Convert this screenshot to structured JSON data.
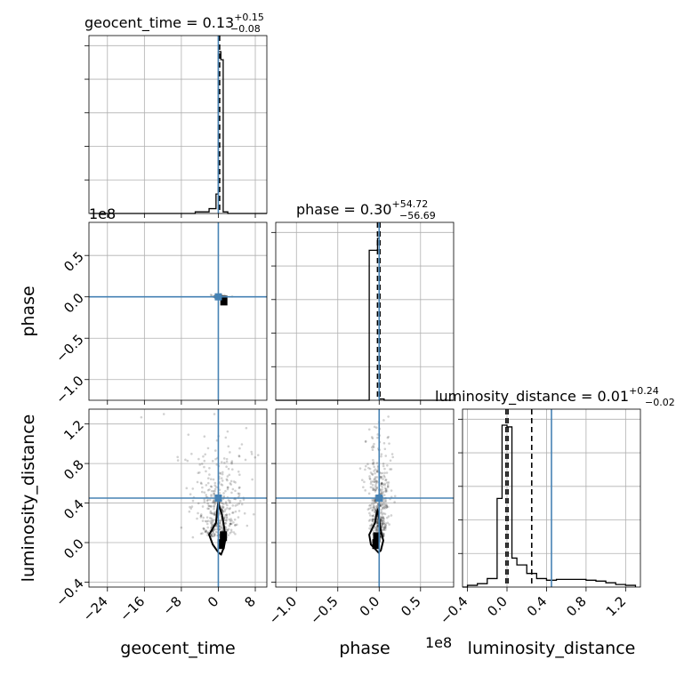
{
  "colors": {
    "truth": "#4682b4",
    "quantile": "#000000",
    "histogram": "#000000",
    "grid": "#b0b0b0",
    "scatter": "#000000"
  },
  "chart_data": {
    "type": "scatter",
    "kind": "corner-plot",
    "grid": true,
    "parameters": [
      "geocent_time",
      "phase",
      "luminosity_distance"
    ],
    "truths": {
      "geocent_time": 0.0,
      "phase": 0.0,
      "luminosity_distance": 0.45
    },
    "titles": {
      "geocent_time": {
        "name": "geocent_time",
        "median": "0.13",
        "plus": "+0.15",
        "minus": "−0.08"
      },
      "phase": {
        "name": "phase",
        "median": "0.30",
        "plus": "+54.72",
        "minus": "−56.69"
      },
      "luminosity_distance": {
        "name": "luminosity_distance",
        "median": "0.01",
        "plus": "+0.24",
        "minus": "−0.02"
      }
    },
    "axes": {
      "geocent_time": {
        "label": "geocent_time",
        "range": [
          -28,
          10.5
        ],
        "ticks": [
          -24,
          -16,
          -8,
          0,
          8
        ],
        "tick_labels": [
          "−24",
          "−16",
          "−8",
          "0",
          "8"
        ]
      },
      "phase": {
        "label": "phase",
        "range": [
          -1.25,
          0.9
        ],
        "ticks": [
          -1.0,
          -0.5,
          0.0,
          0.5
        ],
        "tick_labels": [
          "−1.0",
          "−0.5",
          "0.0",
          "0.5"
        ],
        "offset": "1e8"
      },
      "luminosity_distance": {
        "label": "luminosity_distance",
        "range": [
          -0.45,
          1.35
        ],
        "ticks": [
          -0.4,
          0.0,
          0.4,
          0.8,
          1.2
        ],
        "tick_labels": [
          "−0.4",
          "0.0",
          "0.4",
          "0.8",
          "1.2"
        ]
      }
    },
    "histograms": {
      "geocent_time": {
        "edges": [
          -27.75,
          -19.75,
          -9,
          -5,
          -2,
          -0.5,
          0.0,
          0.55,
          1.05,
          2.05,
          4.5,
          10.5
        ],
        "counts": [
          0,
          0,
          0,
          0.01,
          0.03,
          0.12,
          1.0,
          0.95,
          0.01,
          0,
          0
        ],
        "quantiles": [
          0.05,
          0.13,
          0.28
        ]
      },
      "phase": {
        "edges": [
          -1.25,
          -0.45,
          -0.12,
          -0.02,
          0.0,
          0.06,
          0.9
        ],
        "counts": [
          0,
          0,
          0.88,
          0.95,
          0.008,
          0
        ],
        "quantiles": [
          -0.02,
          0.0,
          0.01
        ]
      },
      "luminosity_distance": {
        "edges": [
          -0.45,
          -0.4,
          -0.3,
          -0.2,
          -0.1,
          -0.05,
          0.0,
          0.05,
          0.1,
          0.2,
          0.3,
          0.4,
          0.5,
          0.6,
          0.7,
          0.8,
          0.9,
          1.0,
          1.1,
          1.2,
          1.3
        ],
        "counts": [
          0.0,
          0.01,
          0.02,
          0.05,
          0.52,
          0.95,
          0.94,
          0.17,
          0.13,
          0.08,
          0.05,
          0.04,
          0.045,
          0.045,
          0.045,
          0.04,
          0.035,
          0.025,
          0.015,
          0.01
        ],
        "quantiles": [
          -0.01,
          0.01,
          0.25
        ]
      }
    },
    "contours": {
      "luminosity_distance_vs_geocent_time": {
        "x": [
          0.0,
          -1.2,
          -2.0,
          -0.5,
          -0.3,
          0.0,
          0.3,
          0.8,
          1.1,
          1.6,
          1.2,
          0.6,
          0.0
        ],
        "y": [
          -0.1,
          -0.02,
          0.08,
          0.2,
          0.3,
          0.42,
          0.35,
          0.28,
          0.2,
          0.05,
          -0.05,
          -0.12,
          -0.1
        ]
      },
      "luminosity_distance_vs_phase": {
        "x": [
          -0.01,
          -0.1,
          -0.12,
          -0.05,
          -0.03,
          -0.02,
          0.0,
          0.02,
          0.05,
          0.02,
          -0.01
        ],
        "y": [
          -0.1,
          -0.02,
          0.08,
          0.2,
          0.3,
          0.32,
          0.24,
          0.12,
          0.02,
          -0.08,
          -0.1
        ]
      }
    },
    "density_cores": {
      "phase_vs_geocent_time": [
        {
          "x": 1.2,
          "y": -0.05
        }
      ],
      "luminosity_distance_vs_geocent_time": [
        {
          "x": 1.1,
          "y": 0.06
        },
        {
          "x": 0.6,
          "y": -0.02
        }
      ],
      "luminosity_distance_vs_phase": [
        {
          "x": -0.03,
          "y": 0.05
        },
        {
          "x": -0.04,
          "y": -0.02
        }
      ]
    }
  }
}
